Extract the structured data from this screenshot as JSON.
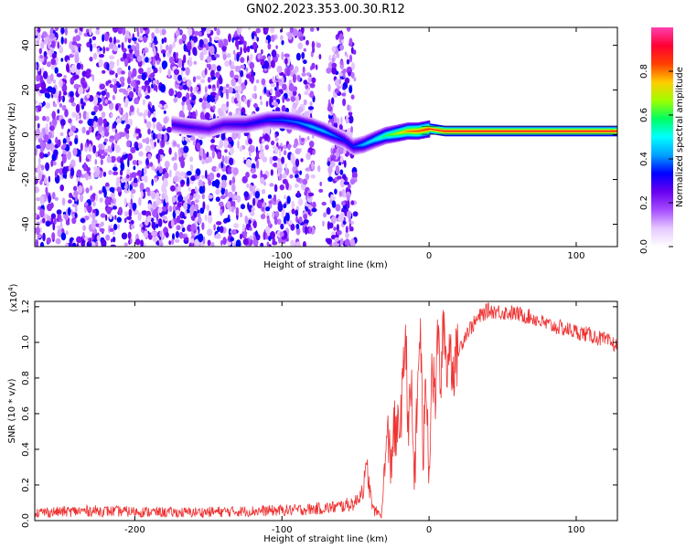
{
  "figure": {
    "title": "GN02.2023.353.00.30.R12"
  },
  "chart_data": [
    {
      "type": "heatmap",
      "xlabel": "Height of straight line (km)",
      "ylabel": "Frequency (Hz)",
      "xlim": [
        -268,
        128
      ],
      "ylim": [
        -50,
        48
      ],
      "x_ticks": [
        -200,
        -100,
        0,
        100
      ],
      "y_ticks": [
        -40,
        -20,
        0,
        20,
        40
      ],
      "colorbar": {
        "label": "Normalized spectral amplitude",
        "range": [
          0,
          1
        ],
        "ticks": [
          0.0,
          0.2,
          0.4,
          0.6,
          0.8
        ],
        "tick_labels": [
          "0.0",
          "0.2",
          "0.4",
          "0.6",
          "0.8"
        ],
        "colors": [
          "#ffffff",
          "#e6c8ff",
          "#a64dff",
          "#6a00f0",
          "#0000ff",
          "#00a0ff",
          "#00ffff",
          "#00ff60",
          "#a0ff00",
          "#ffcc00",
          "#ff4000",
          "#ff0033",
          "#ff40b0"
        ]
      },
      "noise_x_range": [
        -268,
        -50
      ],
      "tone_track": {
        "x": [
          -175,
          -165,
          -150,
          -140,
          -125,
          -110,
          -100,
          -90,
          -80,
          -72,
          -65,
          -58,
          -52,
          -45,
          -38,
          -30,
          -22,
          -15,
          -8,
          0,
          10,
          30,
          60,
          100,
          128
        ],
        "frequency": [
          5,
          4,
          3,
          5,
          5,
          7,
          7,
          6,
          4,
          2,
          0,
          -2,
          -5,
          -4,
          -2,
          0,
          1,
          2,
          2,
          3,
          2,
          2,
          2,
          2,
          2
        ],
        "amplitude": [
          0.3,
          0.3,
          0.28,
          0.3,
          0.32,
          0.35,
          0.38,
          0.4,
          0.45,
          0.45,
          0.4,
          0.35,
          0.35,
          0.45,
          0.5,
          0.6,
          0.7,
          0.8,
          0.85,
          0.88,
          0.9,
          0.9,
          0.9,
          0.9,
          0.9
        ]
      },
      "grid": false
    },
    {
      "type": "line",
      "xlabel": "Height of straight line (km)",
      "ylabel": "SNR (10 * v/v)",
      "y_multiplier": "(x10",
      "y_multiplier_exponent": "4",
      "xlim": [
        -268,
        128
      ],
      "ylim": [
        0,
        12300
      ],
      "x_ticks": [
        -200,
        -100,
        0,
        100
      ],
      "y_ticks": [
        0,
        2000,
        4000,
        6000,
        8000,
        10000,
        12000
      ],
      "y_tick_labels": [
        "0.0",
        "0.2",
        "0.4",
        "0.6",
        "0.8",
        "1.0",
        "1.2"
      ],
      "color": "#ee3333",
      "grid": false,
      "series": [
        {
          "x": [
            -268,
            -250,
            -230,
            -200,
            -170,
            -140,
            -110,
            -90,
            -70,
            -60,
            -50,
            -45,
            -42,
            -40,
            -38,
            -35,
            -32,
            -30,
            -28,
            -26,
            -24,
            -22,
            -20,
            -18,
            -16,
            -14,
            -12,
            -10,
            -8,
            -6,
            -4,
            -2,
            0,
            2,
            4,
            6,
            8,
            10,
            12,
            14,
            16,
            20,
            25,
            30,
            35,
            40,
            50,
            60,
            70,
            80,
            90,
            100,
            110,
            120,
            128
          ],
          "y": [
            450,
            500,
            550,
            500,
            450,
            500,
            550,
            600,
            700,
            800,
            1000,
            1800,
            2900,
            1500,
            600,
            450,
            400,
            3500,
            4500,
            3300,
            5200,
            4500,
            5500,
            7000,
            10800,
            5000,
            7500,
            2200,
            6500,
            11300,
            3500,
            8000,
            3000,
            9000,
            6500,
            10500,
            7500,
            11200,
            8500,
            10000,
            8500,
            9500,
            10500,
            11000,
            11500,
            11800,
            11700,
            11600,
            11400,
            11000,
            10800,
            10600,
            10400,
            10100,
            9800
          ]
        }
      ]
    }
  ]
}
